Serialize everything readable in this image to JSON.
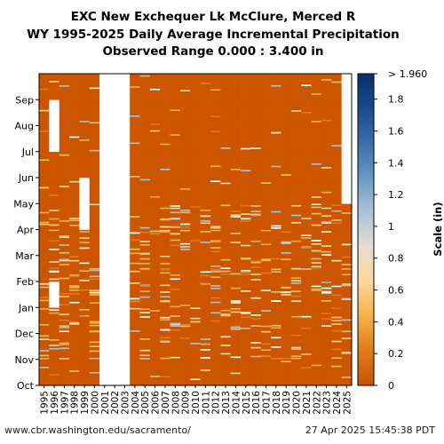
{
  "header": {
    "title_line1": "EXC New Exchequer Lk McClure, Merced R",
    "title_line2": "WY 1995-2025 Daily Average Incremental Precipitation",
    "title_line3": "Observed Range 0.000 : 3.400 in"
  },
  "footer": {
    "source": "www.cbr.washington.edu/sacramento/",
    "timestamp": "27 Apr 2025 15:45:38 PDT"
  },
  "chart_data": {
    "type": "heatmap",
    "x_categories": [
      "1995",
      "1996",
      "1997",
      "1998",
      "1999",
      "2000",
      "2001",
      "2002",
      "2003",
      "2004",
      "2005",
      "2006",
      "2007",
      "2008",
      "2009",
      "2010",
      "2011",
      "2012",
      "2013",
      "2014",
      "2015",
      "2016",
      "2017",
      "2018",
      "2019",
      "2020",
      "2021",
      "2022",
      "2023",
      "2024",
      "2025"
    ],
    "y_categories": [
      "Oct",
      "Nov",
      "Dec",
      "Jan",
      "Feb",
      "Mar",
      "Apr",
      "May",
      "Jun",
      "Jul",
      "Aug",
      "Sep"
    ],
    "colorbar": {
      "label": "Scale (in)",
      "min": 0,
      "max": 1.96,
      "top_label": "> 1.960",
      "ticks": [
        "0",
        "0.2",
        "0.4",
        "0.6",
        "0.8",
        "1",
        "1.2",
        "1.4",
        "1.6",
        "1.8"
      ],
      "tick_values": [
        0,
        0.2,
        0.4,
        0.6,
        0.8,
        1.0,
        1.2,
        1.4,
        1.6,
        1.8
      ],
      "colors": [
        "#c85200",
        "#e07b1a",
        "#f6b04a",
        "#fcd99a",
        "#e6ddd0",
        "#a9c3d8",
        "#6a98c4",
        "#3a6ea8",
        "#1a4a8c",
        "#08306b"
      ]
    },
    "base_color": "#cc5500",
    "missing_color": "#ffffff",
    "missing_ranges": [
      {
        "year": "1996",
        "months": [
          "Jan",
          "Jul",
          "Aug"
        ]
      },
      {
        "year": "1999",
        "months": [
          "Apr",
          "May"
        ]
      },
      {
        "year": "2001",
        "months": [
          "Oct",
          "Nov",
          "Dec",
          "Jan",
          "Feb",
          "Mar",
          "Apr",
          "May",
          "Jun",
          "Jul",
          "Aug",
          "Sep"
        ]
      },
      {
        "year": "2002",
        "months": [
          "Oct",
          "Nov",
          "Dec",
          "Jan",
          "Feb",
          "Mar",
          "Apr",
          "May",
          "Jun",
          "Jul",
          "Aug",
          "Sep"
        ]
      },
      {
        "year": "2003",
        "months": [
          "Oct",
          "Nov",
          "Dec",
          "Jan",
          "Feb",
          "Mar",
          "Apr",
          "May",
          "Jun",
          "Jul",
          "Aug",
          "Sep"
        ]
      },
      {
        "year": "2025",
        "months": [
          "May",
          "Jun",
          "Jul",
          "Aug",
          "Sep"
        ]
      }
    ]
  }
}
